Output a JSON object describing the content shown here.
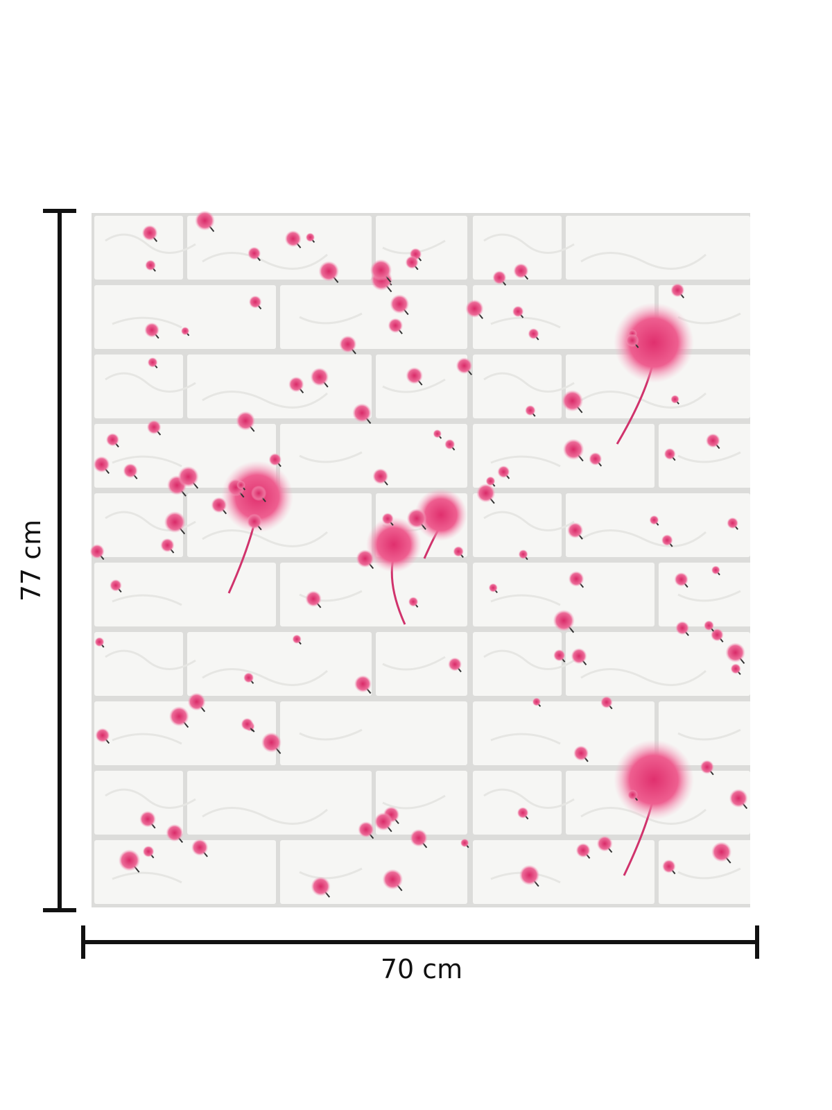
{
  "dimensions": {
    "height": "77 cm",
    "width": "70 cm"
  }
}
